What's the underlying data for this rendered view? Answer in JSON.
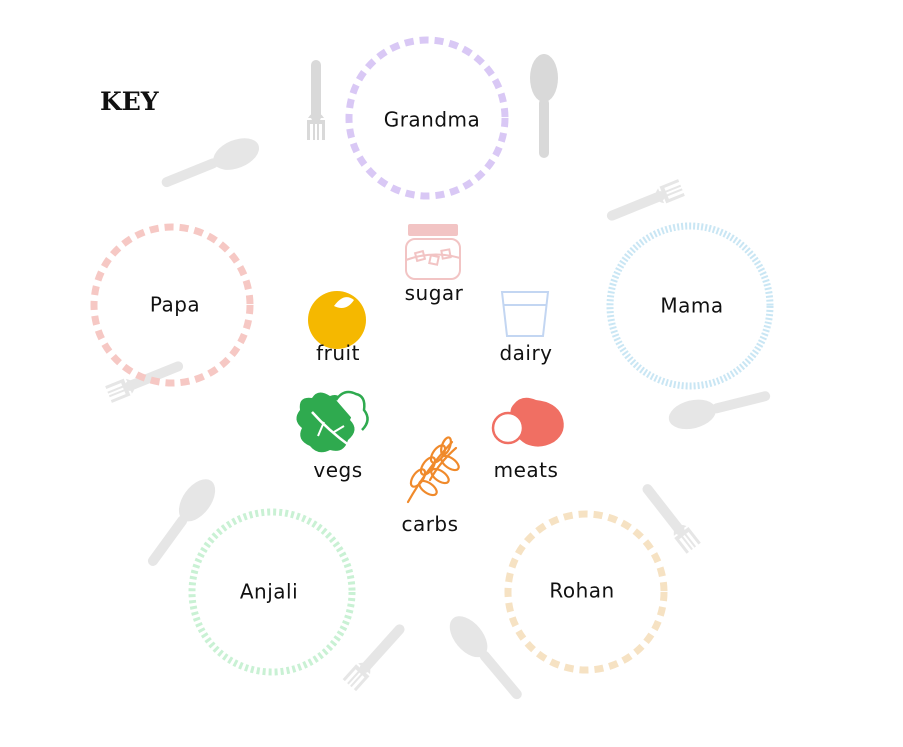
{
  "key": {
    "title": "KEY"
  },
  "plates": [
    {
      "id": "grandma",
      "label": "Grandma",
      "color": "#d9c8f5"
    },
    {
      "id": "papa",
      "label": "Papa",
      "color": "#f6c8c4"
    },
    {
      "id": "mama",
      "label": "Mama",
      "color": "#c9e6f4"
    },
    {
      "id": "anjali",
      "label": "Anjali",
      "color": "#c9f1d4"
    },
    {
      "id": "rohan",
      "label": "Rohan",
      "color": "#f6e2c3"
    }
  ],
  "foods": [
    {
      "id": "sugar",
      "label": "sugar",
      "icon": "jar-icon",
      "color": "#f2c4c4"
    },
    {
      "id": "fruit",
      "label": "fruit",
      "icon": "orange-icon",
      "color": "#f5b800"
    },
    {
      "id": "dairy",
      "label": "dairy",
      "icon": "milk-glass-icon",
      "color": "#c3d6f2"
    },
    {
      "id": "vegs",
      "label": "vegs",
      "icon": "lettuce-icon",
      "color": "#2faa4f"
    },
    {
      "id": "meats",
      "label": "meats",
      "icon": "meat-icon",
      "color": "#f06f63"
    },
    {
      "id": "carbs",
      "label": "carbs",
      "icon": "wheat-icon",
      "color": "#f08a2b"
    }
  ]
}
